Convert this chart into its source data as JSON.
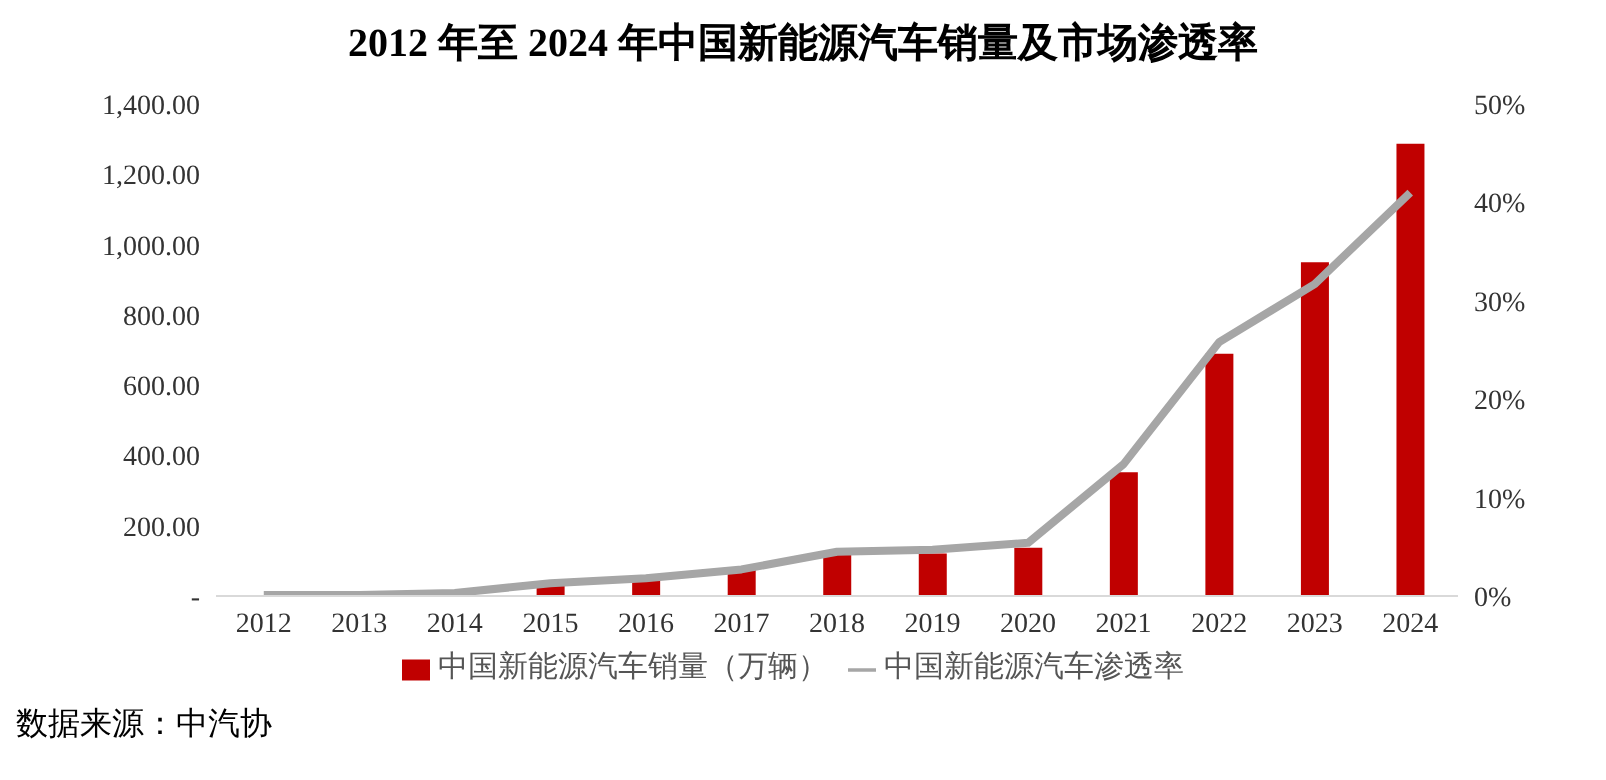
{
  "chart_data": {
    "type": "bar",
    "title": "2012 年至 2024 年中国新能源汽车销量及市场渗透率",
    "categories": [
      "2012",
      "2013",
      "2014",
      "2015",
      "2016",
      "2017",
      "2018",
      "2019",
      "2020",
      "2021",
      "2022",
      "2023",
      "2024"
    ],
    "series": [
      {
        "name": "中国新能源汽车销量（万辆）",
        "color": "#c00000",
        "values": [
          null,
          null,
          null,
          33,
          51,
          78,
          126,
          121,
          137,
          352,
          689,
          950,
          1287
        ]
      },
      {
        "name": "中国新能源汽车渗透率",
        "type": "line",
        "axis": "y2",
        "color": "#a6a6a6",
        "marker": "none",
        "values": [
          0.1,
          0.1,
          0.3,
          1.3,
          1.8,
          2.7,
          4.5,
          4.7,
          5.4,
          13.4,
          25.8,
          31.7,
          41
        ]
      }
    ],
    "ylim": [
      0,
      1400
    ],
    "yticks": [
      {
        "value": 0,
        "label": "-"
      },
      {
        "value": 200,
        "label": "200.00"
      },
      {
        "value": 400,
        "label": "400.00"
      },
      {
        "value": 600,
        "label": "600.00"
      },
      {
        "value": 800,
        "label": "800.00"
      },
      {
        "value": 1000,
        "label": "1,000.00"
      },
      {
        "value": 1200,
        "label": "1,200.00"
      },
      {
        "value": 1400,
        "label": "1,400.00"
      }
    ],
    "y2lim": [
      0,
      50
    ],
    "y2ticks": [
      {
        "value": 0,
        "label": "0%"
      },
      {
        "value": 10,
        "label": "10%"
      },
      {
        "value": 20,
        "label": "20%"
      },
      {
        "value": 30,
        "label": "30%"
      },
      {
        "value": 40,
        "label": "40%"
      },
      {
        "value": 50,
        "label": "50%"
      }
    ],
    "grid": false,
    "legend": "bottom",
    "annotations": [
      "数据来源：中汽协"
    ]
  }
}
